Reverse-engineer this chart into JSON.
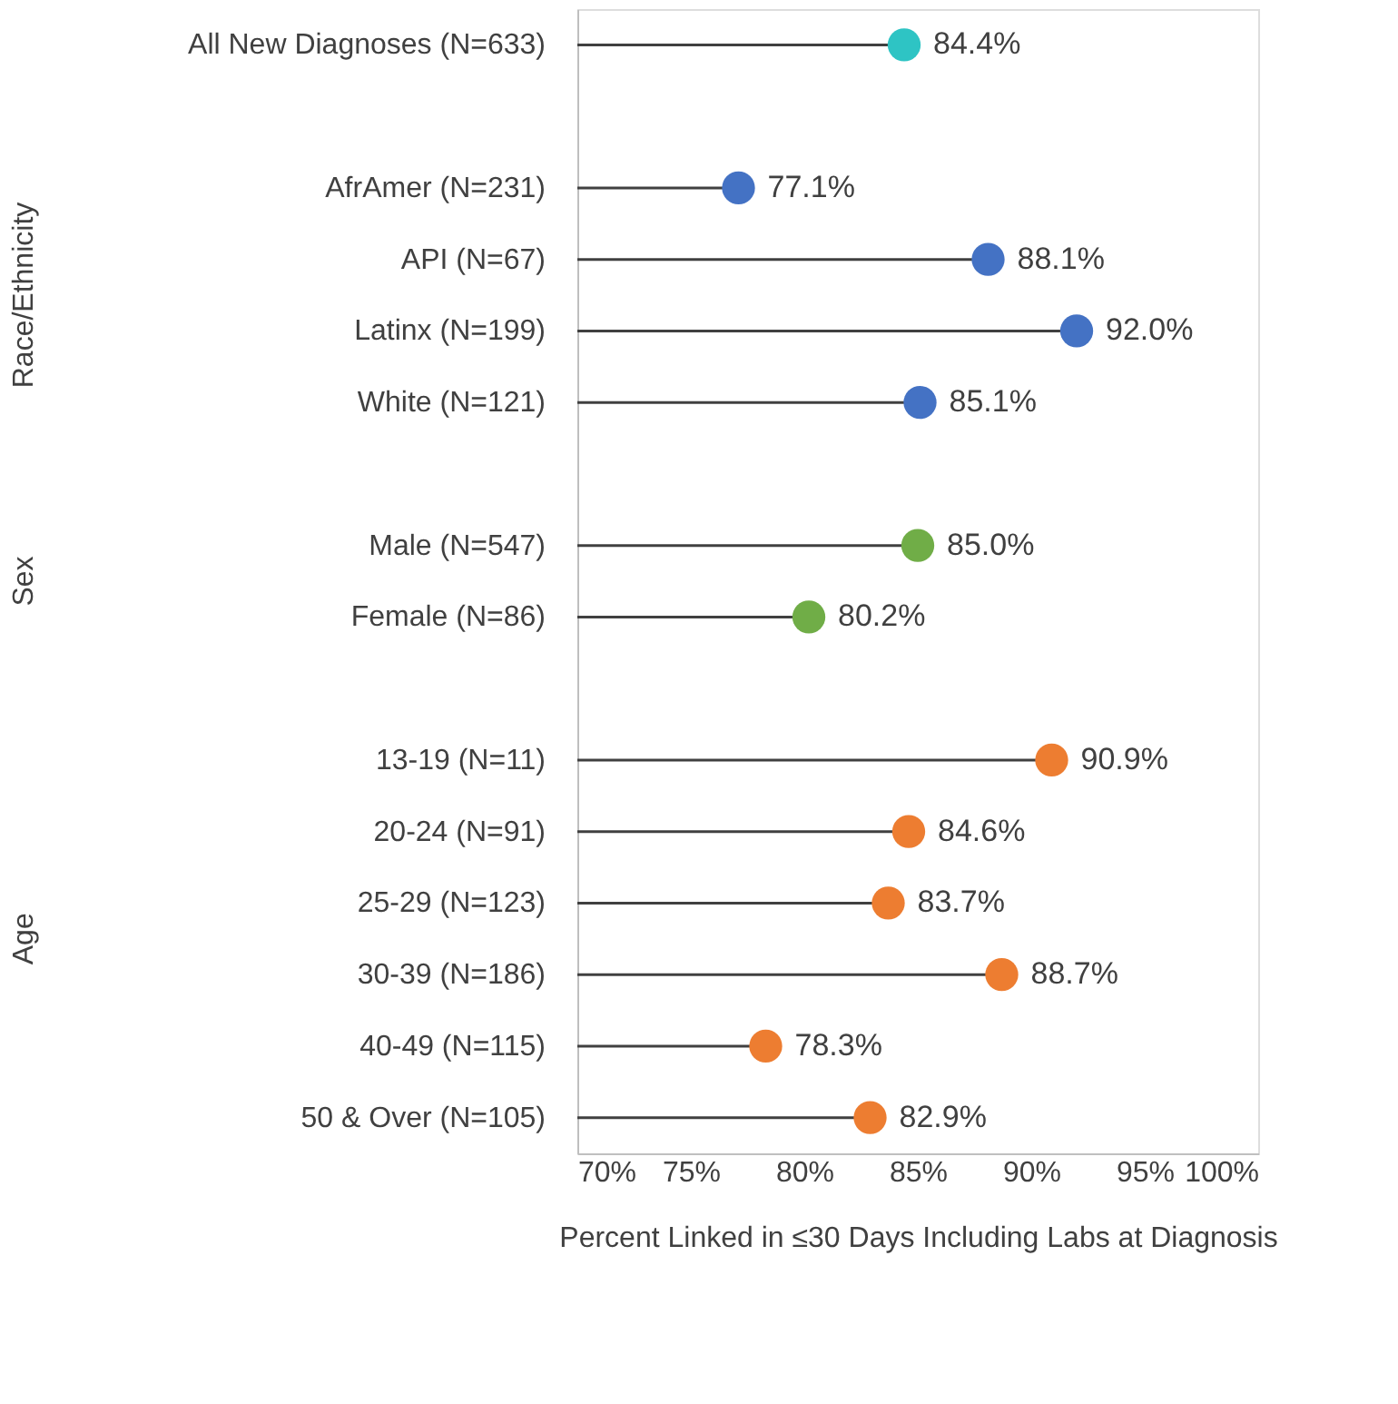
{
  "chart_data": {
    "type": "lollipop",
    "orientation": "horizontal",
    "xlabel": "Percent Linked in ≤30 Days Including Labs at Diagnosis",
    "categories": [
      "All New Diagnoses (N=633)",
      null,
      "AfrAmer (N=231)",
      "API (N=67)",
      "Latinx (N=199)",
      "White (N=121)",
      null,
      "Male (N=547)",
      "Female (N=86)",
      null,
      "13-19 (N=11)",
      "20-24 (N=91)",
      "25-29 (N=123)",
      "30-39 (N=186)",
      "40-49 (N=115)",
      "50 & Over (N=105)"
    ],
    "values": [
      84.4,
      null,
      77.1,
      88.1,
      92.0,
      85.1,
      null,
      85.0,
      80.2,
      null,
      90.9,
      84.6,
      83.7,
      88.7,
      78.3,
      82.9
    ],
    "value_labels": [
      "84.4%",
      null,
      "77.1%",
      "88.1%",
      "92.0%",
      "85.1%",
      null,
      "85.0%",
      "80.2%",
      null,
      "90.9%",
      "84.6%",
      "83.7%",
      "88.7%",
      "78.3%",
      "82.9%"
    ],
    "colors": [
      "#2ec4c4",
      null,
      "#4472c4",
      "#4472c4",
      "#4472c4",
      "#4472c4",
      null,
      "#70ad47",
      "#70ad47",
      null,
      "#ed7d31",
      "#ed7d31",
      "#ed7d31",
      "#ed7d31",
      "#ed7d31",
      "#ed7d31"
    ],
    "xlim": [
      70,
      100
    ],
    "xticks": [
      {
        "value": 70,
        "label": "70%"
      },
      {
        "value": 75,
        "label": "75%"
      },
      {
        "value": 80,
        "label": "80%"
      },
      {
        "value": 85,
        "label": "85%"
      },
      {
        "value": 90,
        "label": "90%"
      },
      {
        "value": 95,
        "label": "95%"
      },
      {
        "value": 100,
        "label": "100%"
      }
    ],
    "annotations": [
      "Race/Ethnicity",
      "Sex",
      "Age"
    ],
    "grid": false
  }
}
